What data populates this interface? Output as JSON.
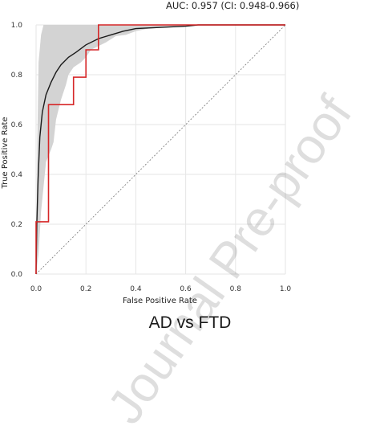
{
  "auc_text": "AUC: 0.957 (CI: 0.948-0.966)",
  "subtitle": "AD vs FTD",
  "watermark": "Journal Pre-proof",
  "colors": {
    "band": "#d3d3d3",
    "mean_curve": "#1a1a1a",
    "roc_curve": "#d62728",
    "diagonal": "#777777",
    "grid": "#e6e6e6"
  },
  "chart_data": {
    "type": "line",
    "xlabel": "False Positive Rate",
    "ylabel": "True Positive Rate",
    "xlim": [
      0,
      1
    ],
    "ylim": [
      0,
      1
    ],
    "x_ticks": [
      "0.0",
      "0.2",
      "0.4",
      "0.6",
      "0.8",
      "1.0"
    ],
    "y_ticks": [
      "0.0",
      "0.2",
      "0.4",
      "0.6",
      "0.8",
      "1.0"
    ],
    "grid": true,
    "series": [
      {
        "kind": "band",
        "upper": [
          [
            0,
            0.02
          ],
          [
            0.005,
            0.55
          ],
          [
            0.01,
            0.85
          ],
          [
            0.02,
            0.96
          ],
          [
            0.03,
            1.0
          ],
          [
            1.0,
            1.0
          ]
        ],
        "lower": [
          [
            0,
            0
          ],
          [
            0.01,
            0.08
          ],
          [
            0.02,
            0.25
          ],
          [
            0.04,
            0.45
          ],
          [
            0.06,
            0.5
          ],
          [
            0.07,
            0.53
          ],
          [
            0.08,
            0.62
          ],
          [
            0.09,
            0.66
          ],
          [
            0.1,
            0.7
          ],
          [
            0.12,
            0.76
          ],
          [
            0.13,
            0.8
          ],
          [
            0.15,
            0.83
          ],
          [
            0.18,
            0.85
          ],
          [
            0.2,
            0.87
          ],
          [
            0.22,
            0.9
          ],
          [
            0.28,
            0.93
          ],
          [
            0.32,
            0.955
          ],
          [
            0.36,
            0.96
          ],
          [
            0.4,
            0.975
          ],
          [
            0.45,
            0.985
          ],
          [
            0.52,
            0.99
          ],
          [
            0.58,
            0.995
          ],
          [
            0.63,
            1.0
          ],
          [
            1.0,
            1.0
          ]
        ]
      },
      {
        "kind": "mean",
        "points": [
          [
            0,
            0
          ],
          [
            0.003,
            0.2
          ],
          [
            0.008,
            0.38
          ],
          [
            0.015,
            0.55
          ],
          [
            0.025,
            0.65
          ],
          [
            0.04,
            0.72
          ],
          [
            0.06,
            0.77
          ],
          [
            0.08,
            0.81
          ],
          [
            0.1,
            0.84
          ],
          [
            0.13,
            0.87
          ],
          [
            0.16,
            0.89
          ],
          [
            0.2,
            0.92
          ],
          [
            0.25,
            0.945
          ],
          [
            0.3,
            0.96
          ],
          [
            0.35,
            0.975
          ],
          [
            0.4,
            0.985
          ],
          [
            0.5,
            0.99
          ],
          [
            0.6,
            0.995
          ],
          [
            0.65,
            1.0
          ],
          [
            1.0,
            1.0
          ]
        ]
      },
      {
        "kind": "roc",
        "points": [
          [
            0,
            0
          ],
          [
            0,
            0.21
          ],
          [
            0.05,
            0.21
          ],
          [
            0.05,
            0.68
          ],
          [
            0.15,
            0.68
          ],
          [
            0.15,
            0.79
          ],
          [
            0.2,
            0.79
          ],
          [
            0.2,
            0.9
          ],
          [
            0.25,
            0.9
          ],
          [
            0.25,
            1.0
          ],
          [
            1.0,
            1.0
          ]
        ]
      }
    ]
  }
}
